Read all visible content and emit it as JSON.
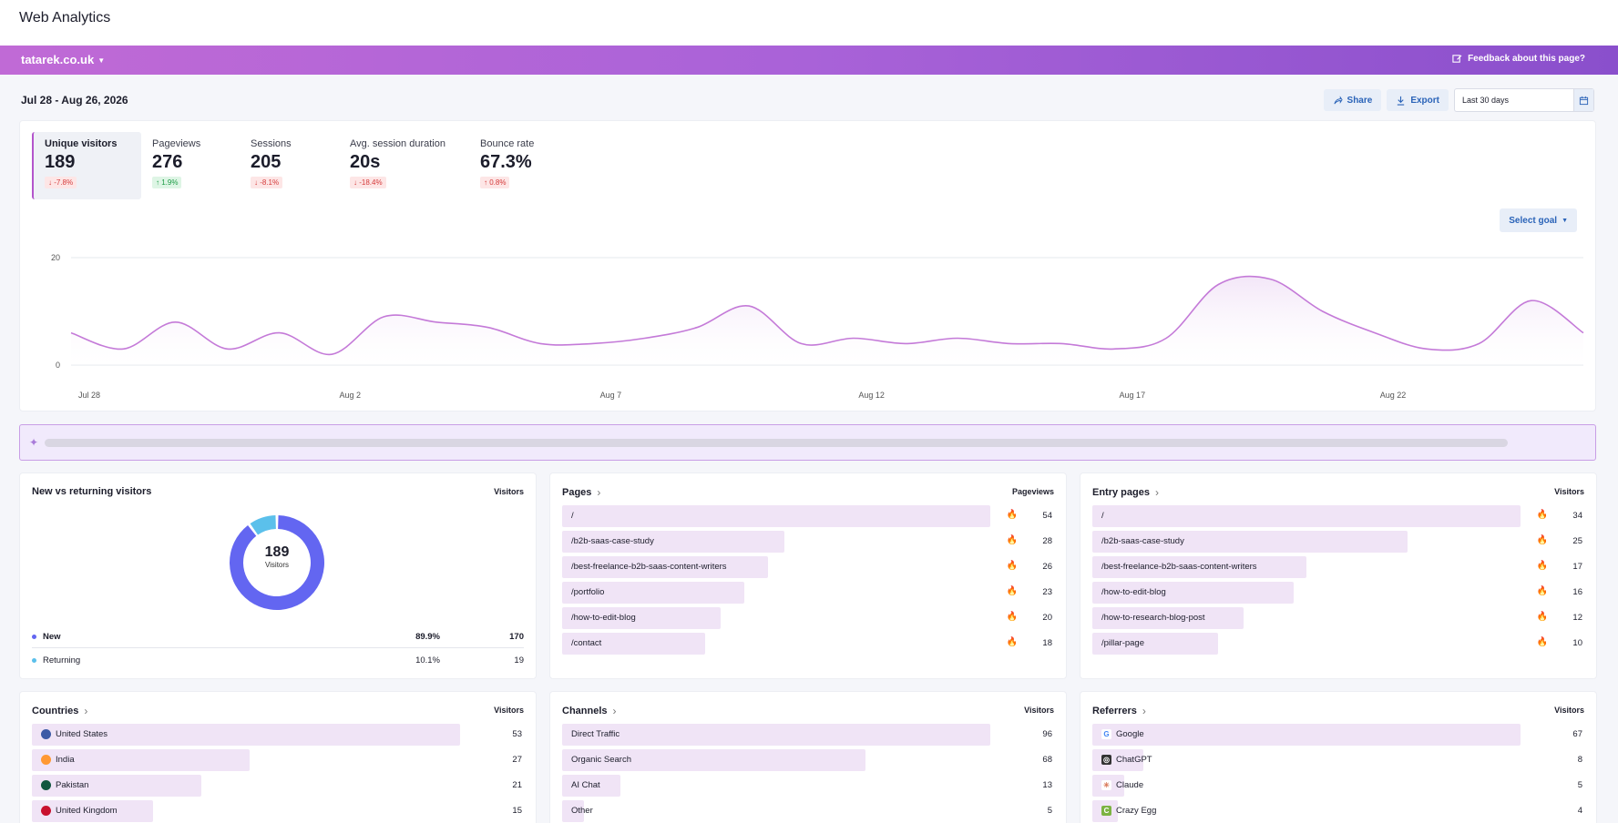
{
  "app": {
    "title": "Web Analytics"
  },
  "banner": {
    "site": "tatarek.co.uk",
    "feedback": "Feedback about this page?"
  },
  "toolbar": {
    "date_range": "Jul 28 - Aug 26, 2026",
    "share_label": "Share",
    "export_label": "Export",
    "period_value": "Last 30 days",
    "goal_label": "Select goal"
  },
  "kpis": [
    {
      "label": "Unique visitors",
      "value": "189",
      "delta": "↓ -7.8%",
      "dir": "down",
      "active": true
    },
    {
      "label": "Pageviews",
      "value": "276",
      "delta": "↑ 1.9%",
      "dir": "up",
      "active": false
    },
    {
      "label": "Sessions",
      "value": "205",
      "delta": "↓ -8.1%",
      "dir": "down",
      "active": false
    },
    {
      "label": "Avg. session duration",
      "value": "20s",
      "delta": "↓ -18.4%",
      "dir": "down",
      "active": false
    },
    {
      "label": "Bounce rate",
      "value": "67.3%",
      "delta": "↑ 0.8%",
      "dir": "down",
      "active": false
    }
  ],
  "chart_data": {
    "type": "area",
    "title": "",
    "xlabel": "",
    "ylabel": "",
    "ylim": [
      0,
      20
    ],
    "yticks": [
      "0",
      "20"
    ],
    "xtick_labels": [
      "Jul 28",
      "Aug 2",
      "Aug 7",
      "Aug 12",
      "Aug 17",
      "Aug 22"
    ],
    "x": [
      "Jul 28",
      "Jul 29",
      "Jul 30",
      "Jul 31",
      "Aug 1",
      "Aug 2",
      "Aug 3",
      "Aug 4",
      "Aug 5",
      "Aug 6",
      "Aug 7",
      "Aug 8",
      "Aug 9",
      "Aug 10",
      "Aug 11",
      "Aug 12",
      "Aug 13",
      "Aug 14",
      "Aug 15",
      "Aug 16",
      "Aug 17",
      "Aug 18",
      "Aug 19",
      "Aug 20",
      "Aug 21",
      "Aug 22",
      "Aug 23",
      "Aug 24",
      "Aug 25",
      "Aug 26"
    ],
    "series": [
      {
        "values": [
          6,
          3,
          8,
          3,
          6,
          2,
          9,
          8,
          7,
          4,
          4,
          5,
          7,
          11,
          4,
          5,
          4,
          5,
          4,
          4,
          3,
          5,
          15,
          16,
          10,
          6,
          3,
          4,
          12,
          6
        ]
      }
    ],
    "grid": true,
    "colors": {
      "line": "#c47ad8",
      "fill": "#f3e6f8"
    }
  },
  "new_vs_returning": {
    "title": "New vs returning visitors",
    "col": "Visitors",
    "total": "189",
    "total_label": "Visitors",
    "colors": {
      "new": "#6366f1",
      "returning": "#5bc0eb"
    },
    "rows": [
      {
        "label": "New",
        "pct": "89.9%",
        "count": "170"
      },
      {
        "label": "Returning",
        "pct": "10.1%",
        "count": "19"
      }
    ]
  },
  "pages": {
    "title": "Pages",
    "col": "Pageviews",
    "rows": [
      {
        "label": "/",
        "value": 54,
        "fire": true
      },
      {
        "label": "/b2b-saas-case-study",
        "value": 28,
        "fire": true
      },
      {
        "label": "/best-freelance-b2b-saas-content-writers",
        "value": 26,
        "fire": true
      },
      {
        "label": "/portfolio",
        "value": 23,
        "fire": true
      },
      {
        "label": "/how-to-edit-blog",
        "value": 20,
        "fire": true
      },
      {
        "label": "/contact",
        "value": 18,
        "fire": true
      }
    ]
  },
  "entry_pages": {
    "title": "Entry pages",
    "col": "Visitors",
    "rows": [
      {
        "label": "/",
        "value": 34,
        "fire": true
      },
      {
        "label": "/b2b-saas-case-study",
        "value": 25,
        "fire": true
      },
      {
        "label": "/best-freelance-b2b-saas-content-writers",
        "value": 17,
        "fire": true
      },
      {
        "label": "/how-to-edit-blog",
        "value": 16,
        "fire": true
      },
      {
        "label": "/how-to-research-blog-post",
        "value": 12,
        "fire": true
      },
      {
        "label": "/pillar-page",
        "value": 10,
        "fire": true
      }
    ]
  },
  "countries": {
    "title": "Countries",
    "col": "Visitors",
    "rows": [
      {
        "label": "United States",
        "value": 53,
        "icon": "us-flag-icon",
        "color": "#3c5aa6"
      },
      {
        "label": "India",
        "value": 27,
        "icon": "in-flag-icon",
        "color": "#ff9933"
      },
      {
        "label": "Pakistan",
        "value": 21,
        "icon": "pk-flag-icon",
        "color": "#115740"
      },
      {
        "label": "United Kingdom",
        "value": 15,
        "icon": "gb-flag-icon",
        "color": "#c8102e"
      }
    ]
  },
  "channels": {
    "title": "Channels",
    "col": "Visitors",
    "rows": [
      {
        "label": "Direct Traffic",
        "value": 96
      },
      {
        "label": "Organic Search",
        "value": 68
      },
      {
        "label": "AI Chat",
        "value": 13
      },
      {
        "label": "Other",
        "value": 5
      }
    ]
  },
  "referrers": {
    "title": "Referrers",
    "col": "Visitors",
    "rows": [
      {
        "label": "Google",
        "value": 67,
        "icon": "google-icon",
        "glyph": "G",
        "color": "#4285f4",
        "bg": "#fff"
      },
      {
        "label": "ChatGPT",
        "value": 8,
        "icon": "chatgpt-icon",
        "glyph": "◎",
        "color": "#fff",
        "bg": "#333"
      },
      {
        "label": "Claude",
        "value": 5,
        "icon": "claude-icon",
        "glyph": "✳",
        "color": "#d97757",
        "bg": "#fff"
      },
      {
        "label": "Crazy Egg",
        "value": 4,
        "icon": "crazy-egg-icon",
        "glyph": "C",
        "color": "#fff",
        "bg": "#7cb342"
      }
    ]
  }
}
